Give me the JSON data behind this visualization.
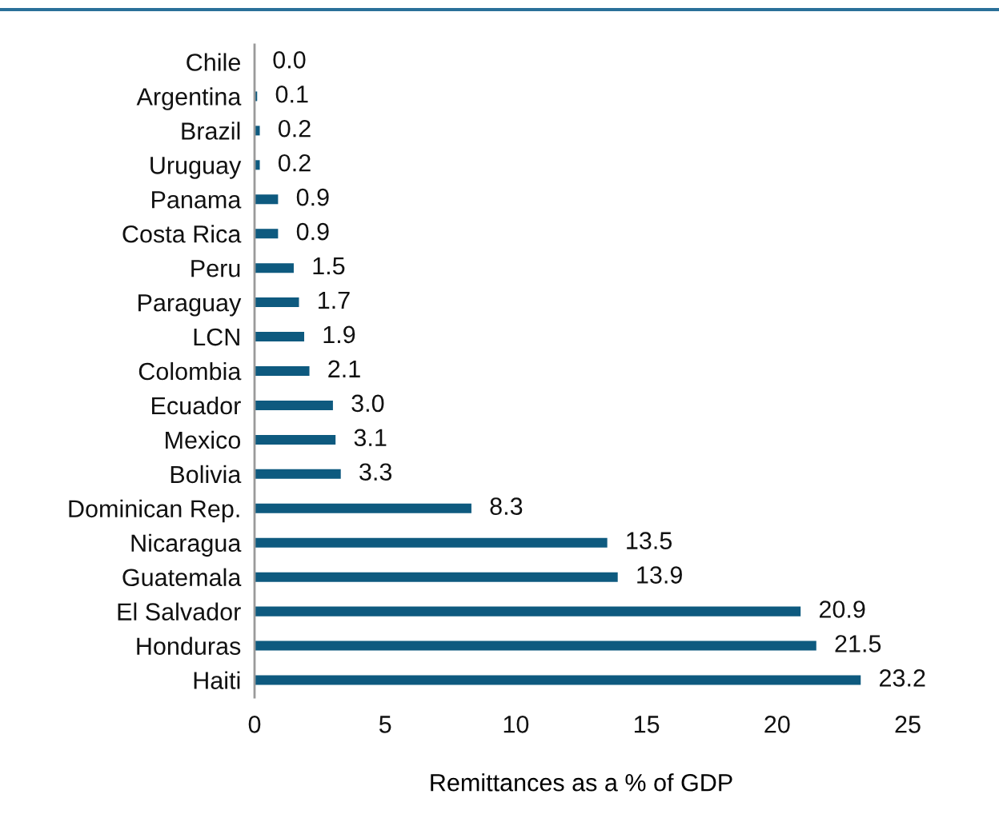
{
  "chart_data": {
    "type": "bar",
    "orientation": "horizontal",
    "xlabel": "Remittances as a % of GDP",
    "categories": [
      "Chile",
      "Argentina",
      "Brazil",
      "Uruguay",
      "Panama",
      "Costa Rica",
      "Peru",
      "Paraguay",
      "LCN",
      "Colombia",
      "Ecuador",
      "Mexico",
      "Bolivia",
      "Dominican Rep.",
      "Nicaragua",
      "Guatemala",
      "El Salvador",
      "Honduras",
      "Haiti"
    ],
    "values": [
      0.0,
      0.1,
      0.2,
      0.2,
      0.9,
      0.9,
      1.5,
      1.7,
      1.9,
      2.1,
      3.0,
      3.1,
      3.3,
      8.3,
      13.5,
      13.9,
      20.9,
      21.5,
      23.2
    ],
    "value_labels": [
      "0.0",
      "0.1",
      "0.2",
      "0.2",
      "0.9",
      "0.9",
      "1.5",
      "1.7",
      "1.9",
      "2.1",
      "3.0",
      "3.1",
      "3.3",
      "8.3",
      "13.5",
      "13.9",
      "20.9",
      "21.5",
      "23.2"
    ],
    "color": "#0e5a7f",
    "xlim": [
      0,
      25
    ],
    "xticks": [
      0,
      5,
      10,
      15,
      20,
      25
    ],
    "grid": false,
    "legend": false
  }
}
